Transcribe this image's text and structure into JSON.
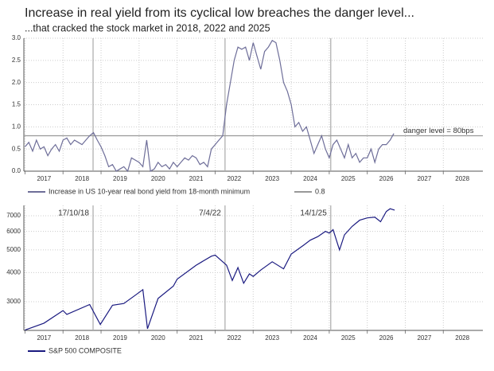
{
  "chart_data": [
    {
      "type": "line",
      "title": "Increase in real yield from its cyclical low breaches the danger level...",
      "subtitle": "...that cracked the stock market in 2018, 2022 and 2025",
      "x": [
        2017.0,
        2017.1,
        2017.2,
        2017.3,
        2017.4,
        2017.5,
        2017.6,
        2017.7,
        2017.8,
        2017.9,
        2018.0,
        2018.1,
        2018.2,
        2018.3,
        2018.4,
        2018.5,
        2018.6,
        2018.7,
        2018.8,
        2018.9,
        2019.0,
        2019.1,
        2019.2,
        2019.3,
        2019.4,
        2019.5,
        2019.6,
        2019.7,
        2019.8,
        2019.9,
        2020.0,
        2020.1,
        2020.2,
        2020.3,
        2020.4,
        2020.5,
        2020.6,
        2020.7,
        2020.8,
        2020.9,
        2021.0,
        2021.1,
        2021.2,
        2021.3,
        2021.4,
        2021.5,
        2021.6,
        2021.7,
        2021.8,
        2021.9,
        2022.0,
        2022.1,
        2022.2,
        2022.3,
        2022.4,
        2022.5,
        2022.6,
        2022.7,
        2022.8,
        2022.9,
        2023.0,
        2023.1,
        2023.2,
        2023.3,
        2023.4,
        2023.5,
        2023.6,
        2023.7,
        2023.8,
        2023.9,
        2024.0,
        2024.1,
        2024.2,
        2024.3,
        2024.4,
        2024.5,
        2024.6,
        2024.7,
        2024.8,
        2024.9,
        2025.0,
        2025.1,
        2025.2,
        2025.3,
        2025.4,
        2025.5,
        2025.6,
        2025.7,
        2025.8,
        2025.9,
        2026.0,
        2026.1,
        2026.2,
        2026.3,
        2026.4,
        2026.5,
        2026.6,
        2026.7
      ],
      "series": [
        {
          "name": "Increase in US 10-year real bond yield from 18-month minimum",
          "color": "#6e6e99",
          "values": [
            0.55,
            0.65,
            0.45,
            0.7,
            0.5,
            0.55,
            0.35,
            0.5,
            0.6,
            0.45,
            0.7,
            0.75,
            0.6,
            0.7,
            0.65,
            0.6,
            0.7,
            0.8,
            0.87,
            0.7,
            0.55,
            0.35,
            0.1,
            0.15,
            0.0,
            0.05,
            0.1,
            0.0,
            0.3,
            0.25,
            0.2,
            0.1,
            0.7,
            0.0,
            0.05,
            0.2,
            0.1,
            0.15,
            0.05,
            0.2,
            0.1,
            0.2,
            0.3,
            0.25,
            0.35,
            0.3,
            0.15,
            0.2,
            0.1,
            0.5,
            0.6,
            0.7,
            0.8,
            1.5,
            2.0,
            2.5,
            2.8,
            2.75,
            2.8,
            2.5,
            2.9,
            2.6,
            2.3,
            2.7,
            2.8,
            2.95,
            2.9,
            2.5,
            2.0,
            1.8,
            1.5,
            1.0,
            1.1,
            0.9,
            1.0,
            0.7,
            0.4,
            0.6,
            0.8,
            0.5,
            0.3,
            0.6,
            0.7,
            0.5,
            0.3,
            0.6,
            0.3,
            0.4,
            0.2,
            0.3,
            0.3,
            0.5,
            0.2,
            0.5,
            0.6,
            0.6,
            0.7,
            0.85
          ]
        }
      ],
      "hline": {
        "name": "0.8",
        "value": 0.8,
        "color": "#999999"
      },
      "annotation": "danger level = 80bps",
      "vlines": [
        2018.79,
        2022.26,
        2025.04
      ],
      "xlim": [
        2016.97,
        2029.04
      ],
      "xticks": [
        2017,
        2018,
        2019,
        2020,
        2021,
        2022,
        2023,
        2024,
        2025,
        2026,
        2027,
        2028
      ],
      "ylim": [
        0,
        3
      ],
      "yticks": [
        {
          "value": 0,
          "label": "0.0"
        },
        0.5,
        {
          "value": 1,
          "label": "1.0"
        },
        1.5,
        {
          "value": 2,
          "label": "2.0"
        },
        2.5,
        {
          "value": 3,
          "label": "3.0"
        }
      ],
      "grid": true,
      "legend": "bottom"
    },
    {
      "type": "line",
      "x": [
        2017.0,
        2017.5,
        2018.0,
        2018.1,
        2018.7,
        2018.98,
        2019.3,
        2019.6,
        2019.9,
        2020.1,
        2020.22,
        2020.5,
        2020.9,
        2021.0,
        2021.5,
        2021.9,
        2022.0,
        2022.3,
        2022.45,
        2022.6,
        2022.75,
        2022.9,
        2023.0,
        2023.2,
        2023.5,
        2023.8,
        2024.0,
        2024.3,
        2024.5,
        2024.7,
        2024.9,
        2025.0,
        2025.1,
        2025.27,
        2025.4,
        2025.6,
        2025.8,
        2026.0,
        2026.2,
        2026.35,
        2026.5,
        2026.6,
        2026.72
      ],
      "series": [
        {
          "name": "S&P 500 COMPOSITE",
          "color": "#1a1a80",
          "values": [
            2270,
            2430,
            2750,
            2650,
            2920,
            2400,
            2900,
            2950,
            3200,
            3380,
            2300,
            3100,
            3500,
            3750,
            4300,
            4700,
            4750,
            4300,
            3700,
            4200,
            3600,
            3950,
            3850,
            4100,
            4450,
            4150,
            4800,
            5200,
            5500,
            5700,
            6000,
            5900,
            6100,
            5000,
            5800,
            6300,
            6700,
            6850,
            6900,
            6600,
            7300,
            7500,
            7400
          ]
        }
      ],
      "annotations": [
        {
          "x": 2018.79,
          "text": "17/10/18"
        },
        {
          "x": 2022.26,
          "text": "7/4/22"
        },
        {
          "x": 2025.04,
          "text": "14/1/25"
        }
      ],
      "xlim": [
        2016.97,
        2029.04
      ],
      "xticks": [
        2017,
        2018,
        2019,
        2020,
        2021,
        2022,
        2023,
        2024,
        2025,
        2026,
        2027,
        2028
      ],
      "ylim": [
        2263,
        7750
      ],
      "yticks": [
        3000,
        4000,
        5000,
        6000,
        7000
      ],
      "log": true,
      "grid": true,
      "legend": "bottom"
    }
  ]
}
